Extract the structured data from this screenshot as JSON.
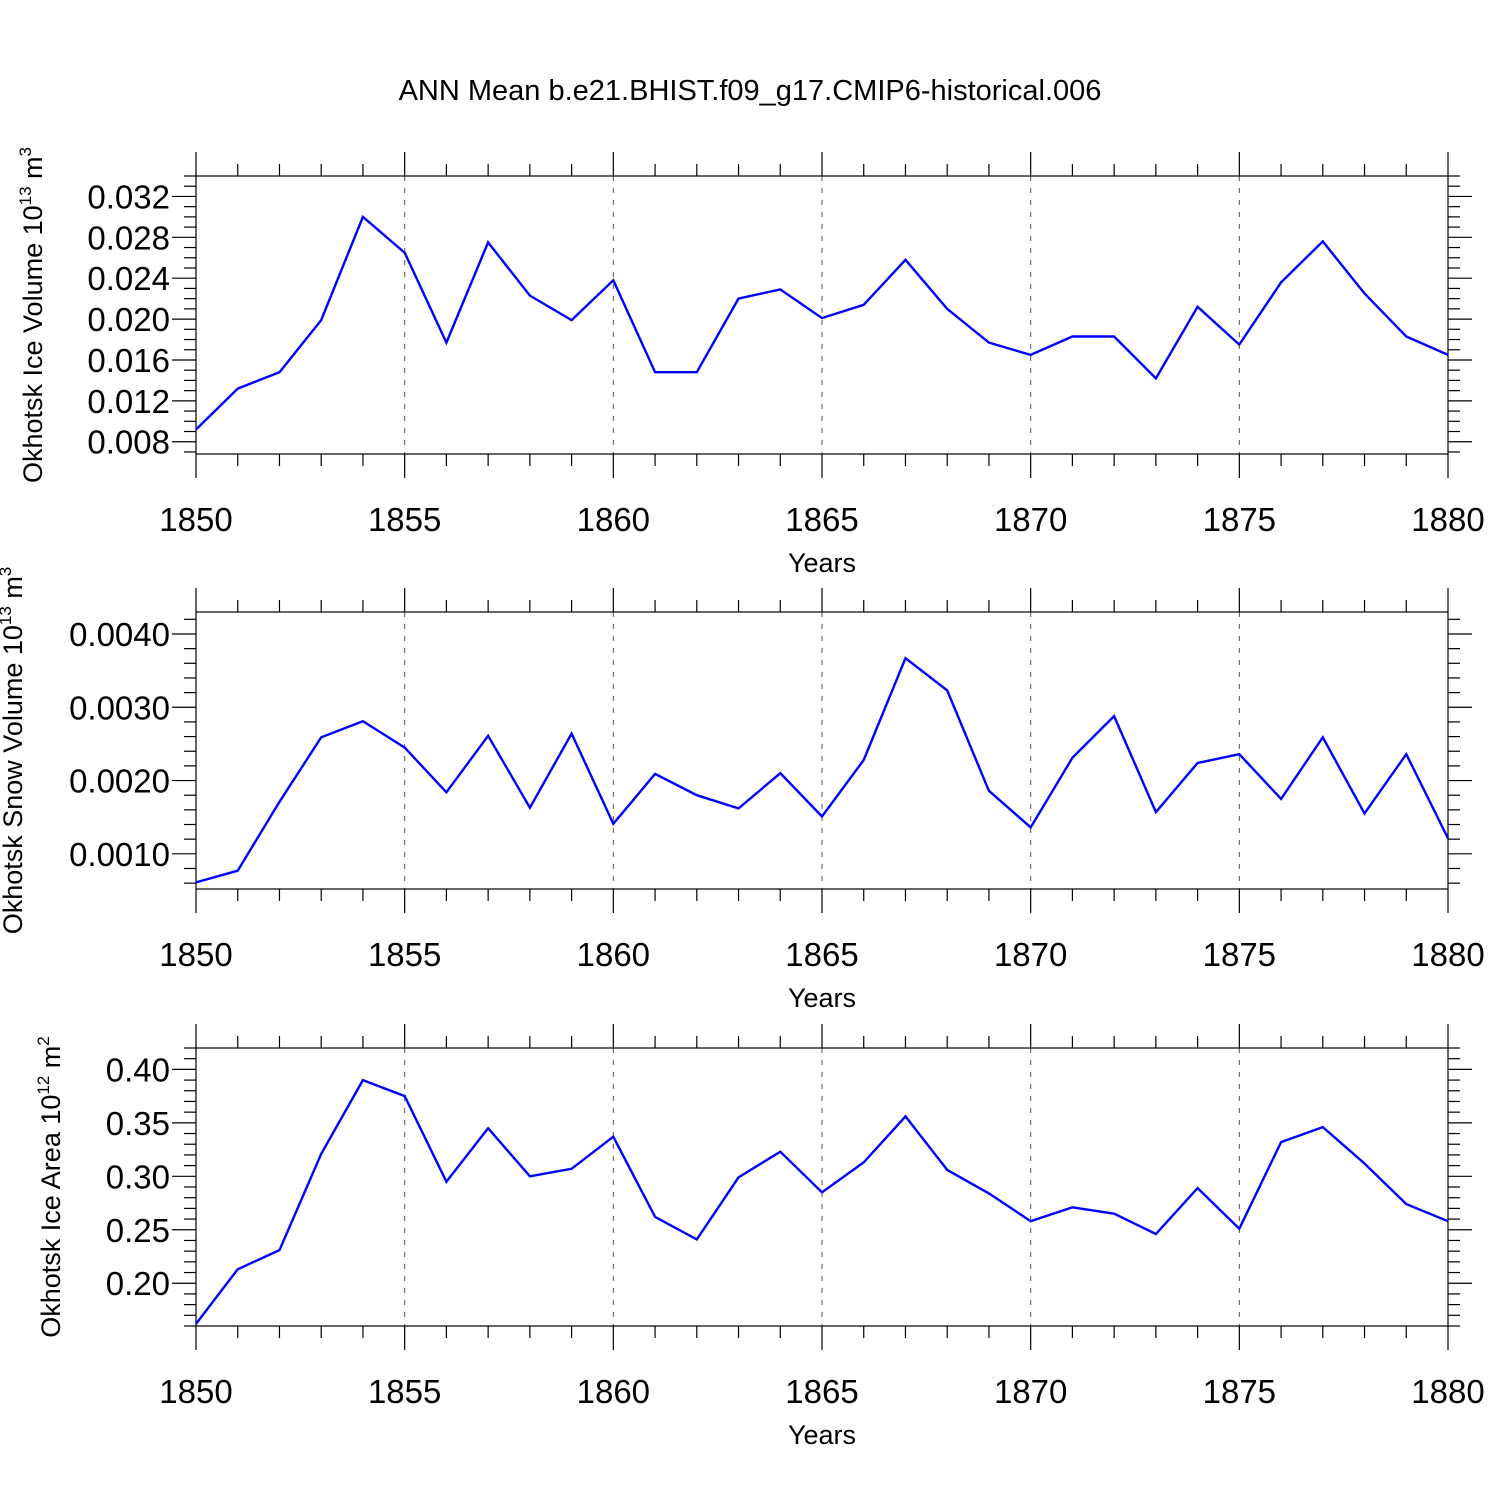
{
  "chart_data": {
    "title": "ANN Mean b.e21.BHIST.f09_g17.CMIP6-historical.006",
    "panels": [
      {
        "type": "line",
        "ylabel": "Okhotsk Ice Volume 10",
        "ylabel_exp": "13",
        "ylabel_unit": "m",
        "ylabel_unit_exp": "3",
        "xlabel": "Years",
        "xlim": [
          1850,
          1880
        ],
        "ylim": [
          0.0068,
          0.034
        ],
        "yticks": [
          0.008,
          0.012,
          0.016,
          0.02,
          0.024,
          0.028,
          0.032
        ],
        "ytick_labels": [
          "0.008",
          "0.012",
          "0.016",
          "0.020",
          "0.024",
          "0.028",
          "0.032"
        ],
        "yminor_step": 0.001,
        "xticks": [
          1850,
          1855,
          1860,
          1865,
          1870,
          1875,
          1880
        ],
        "xtick_labels": [
          "1850",
          "1855",
          "1860",
          "1865",
          "1870",
          "1875",
          "1880"
        ],
        "grid": "vertical dashed at major x ticks",
        "color": "#0000ff",
        "x": [
          1850,
          1851,
          1852,
          1853,
          1854,
          1855,
          1856,
          1857,
          1858,
          1859,
          1860,
          1861,
          1862,
          1863,
          1864,
          1865,
          1866,
          1867,
          1868,
          1869,
          1870,
          1871,
          1872,
          1873,
          1874,
          1875,
          1876,
          1877,
          1878,
          1879,
          1880
        ],
        "y": [
          0.0092,
          0.0132,
          0.0148,
          0.0199,
          0.03,
          0.0265,
          0.0177,
          0.0275,
          0.0223,
          0.0199,
          0.0238,
          0.0148,
          0.0148,
          0.022,
          0.0229,
          0.0201,
          0.0214,
          0.0258,
          0.021,
          0.0177,
          0.0165,
          0.0183,
          0.0183,
          0.0142,
          0.0212,
          0.0175,
          0.0236,
          0.0276,
          0.0225,
          0.0183,
          0.0165
        ]
      },
      {
        "type": "line",
        "ylabel": "Okhotsk Snow Volume 10",
        "ylabel_exp": "13",
        "ylabel_unit": "m",
        "ylabel_unit_exp": "3",
        "xlabel": "Years",
        "xlim": [
          1850,
          1880
        ],
        "ylim": [
          0.00052,
          0.0043
        ],
        "yticks": [
          0.001,
          0.002,
          0.003,
          0.004
        ],
        "ytick_labels": [
          "0.0010",
          "0.0020",
          "0.0030",
          "0.0040"
        ],
        "yminor_step": 0.0002,
        "xticks": [
          1850,
          1855,
          1860,
          1865,
          1870,
          1875,
          1880
        ],
        "xtick_labels": [
          "1850",
          "1855",
          "1860",
          "1865",
          "1870",
          "1875",
          "1880"
        ],
        "grid": "vertical dashed at major x ticks",
        "color": "#0000ff",
        "x": [
          1850,
          1851,
          1852,
          1853,
          1854,
          1855,
          1856,
          1857,
          1858,
          1859,
          1860,
          1861,
          1862,
          1863,
          1864,
          1865,
          1866,
          1867,
          1868,
          1869,
          1870,
          1871,
          1872,
          1873,
          1874,
          1875,
          1876,
          1877,
          1878,
          1879,
          1880
        ],
        "y": [
          0.00061,
          0.00077,
          0.00171,
          0.00259,
          0.00281,
          0.00245,
          0.00184,
          0.00261,
          0.00163,
          0.00264,
          0.00141,
          0.00209,
          0.0018,
          0.00162,
          0.0021,
          0.00151,
          0.00228,
          0.00367,
          0.00323,
          0.00186,
          0.00136,
          0.00231,
          0.00288,
          0.00157,
          0.00224,
          0.00236,
          0.00175,
          0.00259,
          0.00155,
          0.00236,
          0.00121
        ]
      },
      {
        "type": "line",
        "ylabel": "Okhotsk Ice Area 10",
        "ylabel_exp": "12",
        "ylabel_unit": "m",
        "ylabel_unit_exp": "2",
        "xlabel": "Years",
        "xlim": [
          1850,
          1880
        ],
        "ylim": [
          0.16,
          0.42
        ],
        "yticks": [
          0.2,
          0.25,
          0.3,
          0.35,
          0.4
        ],
        "ytick_labels": [
          "0.20",
          "0.25",
          "0.30",
          "0.35",
          "0.40"
        ],
        "yminor_step": 0.01,
        "xticks": [
          1850,
          1855,
          1860,
          1865,
          1870,
          1875,
          1880
        ],
        "xtick_labels": [
          "1850",
          "1855",
          "1860",
          "1865",
          "1870",
          "1875",
          "1880"
        ],
        "grid": "vertical dashed at major x ticks",
        "color": "#0000ff",
        "x": [
          1850,
          1851,
          1852,
          1853,
          1854,
          1855,
          1856,
          1857,
          1858,
          1859,
          1860,
          1861,
          1862,
          1863,
          1864,
          1865,
          1866,
          1867,
          1868,
          1869,
          1870,
          1871,
          1872,
          1873,
          1874,
          1875,
          1876,
          1877,
          1878,
          1879,
          1880
        ],
        "y": [
          0.162,
          0.213,
          0.231,
          0.321,
          0.39,
          0.375,
          0.295,
          0.345,
          0.3,
          0.307,
          0.337,
          0.262,
          0.241,
          0.299,
          0.323,
          0.285,
          0.313,
          0.356,
          0.306,
          0.284,
          0.258,
          0.271,
          0.265,
          0.246,
          0.289,
          0.251,
          0.332,
          0.346,
          0.312,
          0.274,
          0.258
        ]
      }
    ]
  }
}
